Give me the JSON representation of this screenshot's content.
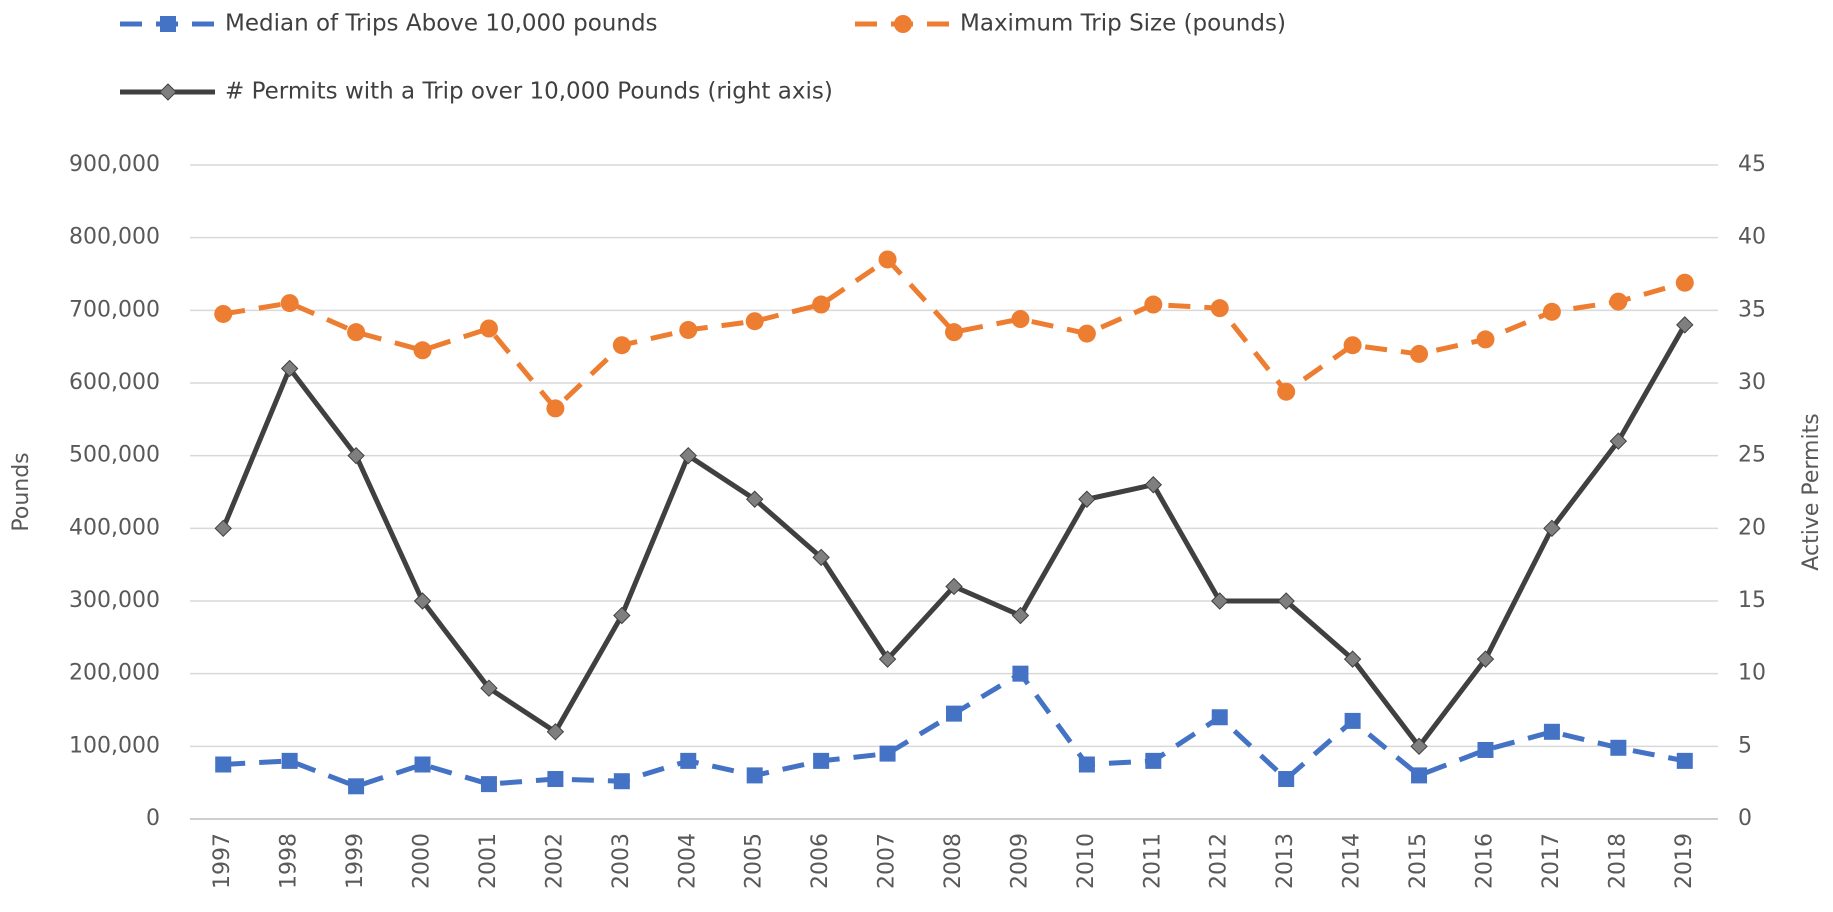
{
  "chart_data": {
    "type": "line",
    "categories": [
      "1997",
      "1998",
      "1999",
      "2000",
      "2001",
      "2002",
      "2003",
      "2004",
      "2005",
      "2006",
      "2007",
      "2008",
      "2009",
      "2010",
      "2011",
      "2012",
      "2013",
      "2014",
      "2015",
      "2016",
      "2017",
      "2018",
      "2019"
    ],
    "series": [
      {
        "name": "Median of Trips Above 10,000 pounds",
        "color": "#4472c4",
        "marker": "square",
        "dash": true,
        "values": [
          75000,
          80000,
          45000,
          75000,
          48000,
          55000,
          52000,
          80000,
          60000,
          80000,
          90000,
          145000,
          200000,
          75000,
          80000,
          140000,
          55000,
          135000,
          60000,
          95000,
          120000,
          98000,
          80000
        ]
      },
      {
        "name": "Maximum Trip Size (pounds)",
        "color": "#ed7d31",
        "marker": "circle",
        "dash": true,
        "values": [
          695000,
          710000,
          670000,
          645000,
          675000,
          565000,
          652000,
          673000,
          685000,
          708000,
          770000,
          670000,
          688000,
          668000,
          708000,
          703000,
          588000,
          652000,
          640000,
          660000,
          698000,
          712000,
          738000
        ]
      },
      {
        "name": "# Permits with a Trip over 10,000 Pounds (right axis)",
        "color": "#404040",
        "marker": "diamond",
        "dash": false,
        "axis": "y2",
        "values": [
          20,
          31,
          25,
          15,
          9,
          6,
          14,
          25,
          22,
          18,
          11,
          16,
          14,
          22,
          23,
          15,
          15,
          11,
          5,
          11,
          20,
          26,
          34
        ]
      }
    ],
    "y_label": "Pounds",
    "y2_label": "Active Permits",
    "ylim": [
      0,
      900000
    ],
    "yticks": [
      0,
      {
        "value": 100000,
        "label": "100,000"
      },
      {
        "value": 200000,
        "label": "200,000"
      },
      {
        "value": 300000,
        "label": "300,000"
      },
      {
        "value": 400000,
        "label": "400,000"
      },
      {
        "value": 500000,
        "label": "500,000"
      },
      {
        "value": 600000,
        "label": "600,000"
      },
      {
        "value": 700000,
        "label": "700,000"
      },
      {
        "value": 800000,
        "label": "800,000"
      },
      {
        "value": 900000,
        "label": "900,000"
      }
    ],
    "y2lim": [
      0,
      45
    ],
    "y2ticks": [
      0,
      5,
      10,
      15,
      20,
      25,
      30,
      35,
      40,
      45
    ],
    "grid": true
  }
}
